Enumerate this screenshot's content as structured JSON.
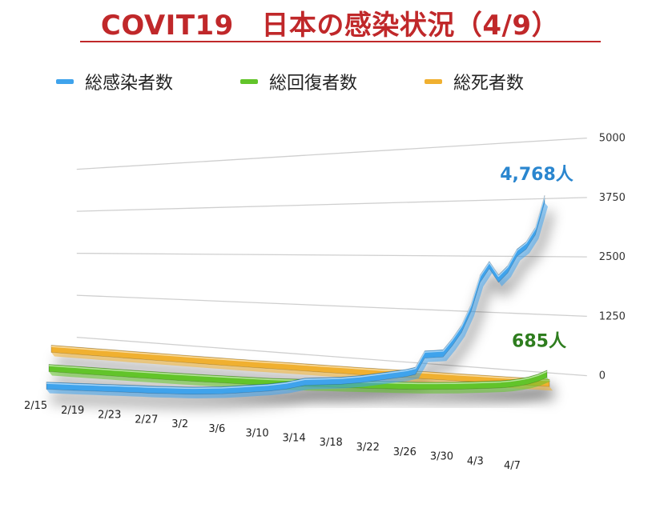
{
  "title": "COVIT19　日本の感染状況（4/9）",
  "chart_data": {
    "type": "line",
    "title": "COVIT19　日本の感染状況（4/9）",
    "categories": [
      "2/15",
      "2/16",
      "2/17",
      "2/18",
      "2/19",
      "2/20",
      "2/21",
      "2/22",
      "2/23",
      "2/24",
      "2/25",
      "2/26",
      "2/27",
      "2/28",
      "2/29",
      "3/1",
      "3/2",
      "3/3",
      "3/4",
      "3/5",
      "3/6",
      "3/7",
      "3/8",
      "3/9",
      "3/10",
      "3/11",
      "3/12",
      "3/13",
      "3/14",
      "3/15",
      "3/16",
      "3/17",
      "3/18",
      "3/19",
      "3/20",
      "3/21",
      "3/22",
      "3/23",
      "3/24",
      "3/25",
      "3/26",
      "3/27",
      "3/28",
      "3/29",
      "3/30",
      "3/31",
      "4/1",
      "4/2",
      "4/3",
      "4/4",
      "4/5",
      "4/6",
      "4/7",
      "4/8",
      "4/9"
    ],
    "x_tick_labels": [
      "2/15",
      "2/19",
      "2/23",
      "2/27",
      "3/2",
      "3/6",
      "3/10",
      "3/14",
      "3/18",
      "3/22",
      "3/26",
      "3/30",
      "4/3",
      "4/7"
    ],
    "y_ticks": [
      "0",
      "1250",
      "2500",
      "3750",
      "5000"
    ],
    "ylim": [
      0,
      5000
    ],
    "series": [
      {
        "name": "総感染者数",
        "color": "#3fa3ec",
        "values": [
          45,
          55,
          65,
          75,
          85,
          95,
          105,
          115,
          125,
          135,
          145,
          150,
          160,
          175,
          185,
          195,
          210,
          230,
          250,
          270,
          300,
          330,
          360,
          390,
          420,
          460,
          500,
          560,
          620,
          640,
          660,
          680,
          700,
          730,
          760,
          800,
          840,
          880,
          920,
          960,
          1020,
          1400,
          1420,
          1440,
          1700,
          2000,
          2450,
          3100,
          3400,
          3100,
          3300,
          3650,
          3800,
          4100,
          4768
        ]
      },
      {
        "name": "総回復者数",
        "color": "#62c42a",
        "values": [
          0,
          2,
          4,
          6,
          8,
          10,
          12,
          14,
          16,
          18,
          20,
          22,
          25,
          28,
          32,
          36,
          40,
          45,
          50,
          55,
          60,
          65,
          70,
          75,
          80,
          90,
          100,
          110,
          120,
          130,
          140,
          150,
          160,
          170,
          180,
          190,
          200,
          210,
          220,
          230,
          240,
          255,
          270,
          285,
          300,
          320,
          340,
          360,
          380,
          400,
          430,
          470,
          520,
          590,
          685
        ]
      },
      {
        "name": "総死者数",
        "color": "#f0b030",
        "values": [
          0,
          0,
          0,
          0,
          0,
          0,
          1,
          1,
          1,
          1,
          2,
          2,
          3,
          4,
          4,
          5,
          6,
          6,
          7,
          8,
          9,
          10,
          12,
          15,
          17,
          19,
          21,
          22,
          24,
          26,
          28,
          30,
          32,
          33,
          35,
          38,
          40,
          45,
          47,
          50,
          52,
          55,
          57,
          60,
          62,
          65,
          68,
          70,
          72,
          75,
          77,
          80,
          82,
          85,
          88
        ]
      }
    ],
    "annotations": [
      {
        "text": "4,768人",
        "series": "総感染者数",
        "color": "#2a86cf"
      },
      {
        "text": "685人",
        "series": "総回復者数",
        "color": "#2e7d1e"
      }
    ],
    "legend_position": "top",
    "grid": true
  }
}
